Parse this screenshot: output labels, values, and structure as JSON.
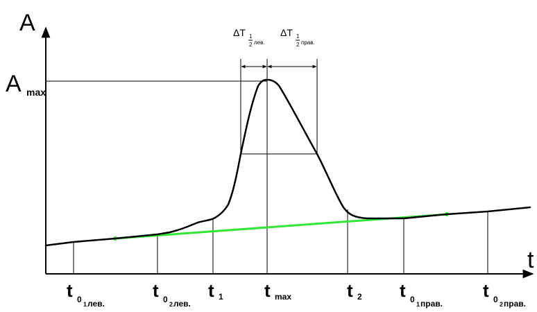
{
  "axes": {
    "y_label": "A",
    "x_label": "t",
    "amax_main": "A",
    "amax_sub": "max"
  },
  "ticks": [
    {
      "main": "t",
      "sub1": "0",
      "sub2": "1",
      "sub3": "лев."
    },
    {
      "main": "t",
      "sub1": "0",
      "sub2": "2",
      "sub3": "лев."
    },
    {
      "main": "t",
      "sub1": "1",
      "sub2": "",
      "sub3": ""
    },
    {
      "main": "t",
      "sub1": "max",
      "sub2": "",
      "sub3": ""
    },
    {
      "main": "t",
      "sub1": "2",
      "sub2": "",
      "sub3": ""
    },
    {
      "main": "t",
      "sub1": "0",
      "sub2": "1",
      "sub3": "прав."
    },
    {
      "main": "t",
      "sub1": "0",
      "sub2": "2",
      "sub3": "прав."
    }
  ],
  "delta_left": {
    "main": "ΔT",
    "num": "1",
    "den": "2",
    "suffix": "лев."
  },
  "delta_right": {
    "main": "ΔT",
    "num": "1",
    "den": "2",
    "suffix": "прав."
  },
  "colors": {
    "curve": "#000000",
    "baseline": "#33e633"
  }
}
